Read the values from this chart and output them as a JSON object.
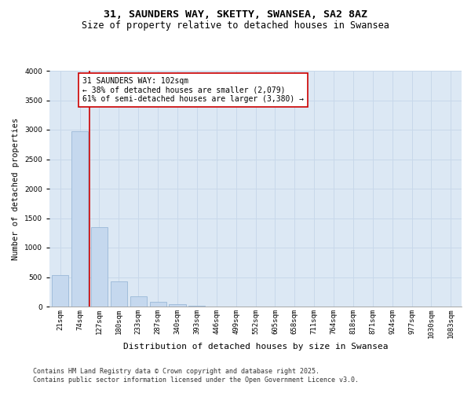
{
  "title_line1": "31, SAUNDERS WAY, SKETTY, SWANSEA, SA2 8AZ",
  "title_line2": "Size of property relative to detached houses in Swansea",
  "xlabel": "Distribution of detached houses by size in Swansea",
  "ylabel": "Number of detached properties",
  "bar_color": "#c5d8ee",
  "bar_edge_color": "#9ab8d8",
  "grid_color": "#c8d8ea",
  "background_color": "#dce8f4",
  "red_line_color": "#cc0000",
  "annotation_box_color": "#cc0000",
  "categories": [
    "21sqm",
    "74sqm",
    "127sqm",
    "180sqm",
    "233sqm",
    "287sqm",
    "340sqm",
    "393sqm",
    "446sqm",
    "499sqm",
    "552sqm",
    "605sqm",
    "658sqm",
    "711sqm",
    "764sqm",
    "818sqm",
    "871sqm",
    "924sqm",
    "977sqm",
    "1030sqm",
    "1083sqm"
  ],
  "values": [
    530,
    2970,
    1350,
    430,
    180,
    80,
    40,
    10,
    5,
    3,
    2,
    2,
    1,
    1,
    1,
    1,
    1,
    0,
    0,
    0,
    0
  ],
  "red_line_x": 1.5,
  "annotation_line1": "31 SAUNDERS WAY: 102sqm",
  "annotation_line2": "← 38% of detached houses are smaller (2,079)",
  "annotation_line3": "61% of semi-detached houses are larger (3,380) →",
  "ylim": [
    0,
    4000
  ],
  "yticks": [
    0,
    500,
    1000,
    1500,
    2000,
    2500,
    3000,
    3500,
    4000
  ],
  "footer_line1": "Contains HM Land Registry data © Crown copyright and database right 2025.",
  "footer_line2": "Contains public sector information licensed under the Open Government Licence v3.0.",
  "title_fontsize": 9.5,
  "subtitle_fontsize": 8.5,
  "axis_label_fontsize": 7.5,
  "tick_fontsize": 6.5,
  "annotation_fontsize": 7,
  "footer_fontsize": 6
}
